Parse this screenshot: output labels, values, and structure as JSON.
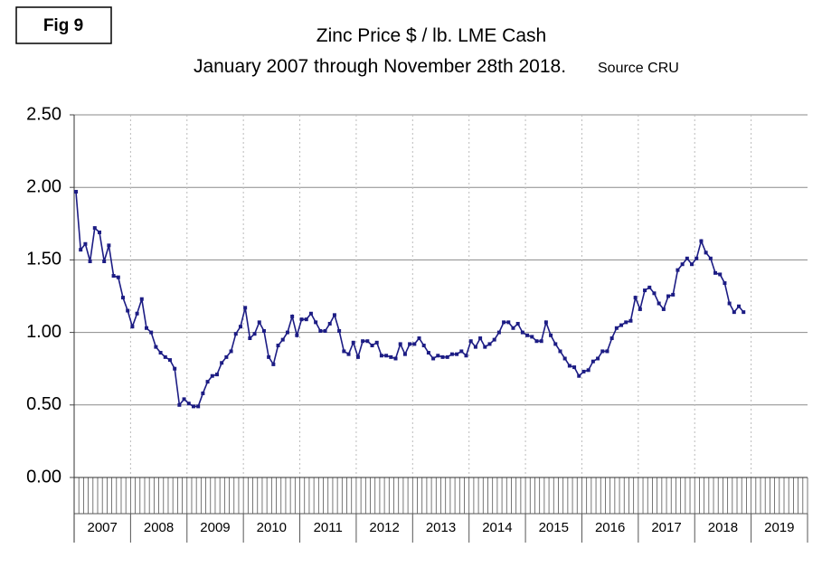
{
  "chart_data": {
    "type": "line",
    "figure_label": "Fig 9",
    "title": "Zinc Price $ / lb. LME Cash",
    "subtitle": "January 2007 through November 28th 2018.",
    "source": "Source CRU",
    "categories": [
      null,
      null,
      null,
      null,
      null,
      null,
      "2007",
      null,
      null,
      null,
      null,
      null,
      null,
      null,
      null,
      null,
      null,
      null,
      "2008",
      null,
      null,
      null,
      null,
      null,
      null,
      null,
      null,
      null,
      null,
      null,
      "2009",
      null,
      null,
      null,
      null,
      null,
      null,
      null,
      null,
      null,
      null,
      null,
      "2010",
      null,
      null,
      null,
      null,
      null,
      null,
      null,
      null,
      null,
      null,
      null,
      "2011",
      null,
      null,
      null,
      null,
      null,
      null,
      null,
      null,
      null,
      null,
      null,
      "2012",
      null,
      null,
      null,
      null,
      null,
      null,
      null,
      null,
      null,
      null,
      null,
      "2013",
      null,
      null,
      null,
      null,
      null,
      null,
      null,
      null,
      null,
      null,
      null,
      "2014",
      null,
      null,
      null,
      null,
      null,
      null,
      null,
      null,
      null,
      null,
      null,
      "2015",
      null,
      null,
      null,
      null,
      null,
      null,
      null,
      null,
      null,
      null,
      null,
      "2016",
      null,
      null,
      null,
      null,
      null,
      null,
      null,
      null,
      null,
      null,
      null,
      "2017",
      null,
      null,
      null,
      null,
      null,
      null,
      null,
      null,
      null,
      null,
      null,
      "2018",
      null,
      null,
      null,
      null,
      null,
      null,
      null,
      null,
      null,
      null,
      null,
      "2019",
      null,
      null,
      null,
      null,
      null
    ],
    "values": [
      1.97,
      1.57,
      1.61,
      1.49,
      1.72,
      1.69,
      1.49,
      1.6,
      1.39,
      1.38,
      1.24,
      1.15,
      1.04,
      1.13,
      1.23,
      1.03,
      1.0,
      0.9,
      0.86,
      0.83,
      0.81,
      0.75,
      0.5,
      0.54,
      0.51,
      0.49,
      0.49,
      0.58,
      0.66,
      0.7,
      0.71,
      0.79,
      0.83,
      0.87,
      0.99,
      1.04,
      1.17,
      0.96,
      0.99,
      1.07,
      1.01,
      0.83,
      0.78,
      0.91,
      0.95,
      1.0,
      1.11,
      0.98,
      1.09,
      1.09,
      1.13,
      1.07,
      1.01,
      1.01,
      1.06,
      1.12,
      1.01,
      0.87,
      0.85,
      0.93,
      0.83,
      0.94,
      0.94,
      0.91,
      0.93,
      0.84,
      0.84,
      0.83,
      0.82,
      0.92,
      0.85,
      0.92,
      0.92,
      0.96,
      0.91,
      0.86,
      0.82,
      0.84,
      0.83,
      0.83,
      0.85,
      0.85,
      0.87,
      0.84,
      0.94,
      0.9,
      0.96,
      0.9,
      0.92,
      0.95,
      1.0,
      1.07,
      1.07,
      1.03,
      1.06,
      1.0,
      0.98,
      0.97,
      0.94,
      0.94,
      1.07,
      0.98,
      0.92,
      0.87,
      0.82,
      0.77,
      0.76,
      0.7,
      0.73,
      0.74,
      0.8,
      0.82,
      0.87,
      0.87,
      0.96,
      1.03,
      1.05,
      1.07,
      1.08,
      1.24,
      1.16,
      1.29,
      1.31,
      1.27,
      1.2,
      1.16,
      1.25,
      1.26,
      1.43,
      1.47,
      1.51,
      1.47,
      1.51,
      1.63,
      1.55,
      1.51,
      1.41,
      1.4,
      1.34,
      1.2,
      1.14,
      1.18,
      1.14,
      null,
      null,
      null,
      null,
      null,
      null,
      null,
      null,
      null,
      null,
      null,
      null,
      null
    ],
    "color": "#1c1c84",
    "ylim": [
      0,
      2.5
    ],
    "yticks": [
      {
        "value": 0,
        "label": "0.00"
      },
      {
        "value": 0.5,
        "label": "0.50"
      },
      {
        "value": 1,
        "label": "1.00"
      },
      {
        "value": 1.5,
        "label": "1.50"
      },
      {
        "value": 2,
        "label": "2.00"
      },
      {
        "value": 2.5,
        "label": "2.50"
      }
    ],
    "grid": true
  }
}
